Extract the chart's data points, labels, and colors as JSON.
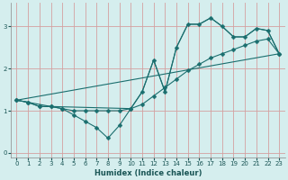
{
  "xlabel": "Humidex (Indice chaleur)",
  "bg_color": "#d5eeee",
  "grid_color": "#d4a0a0",
  "line_color": "#1a6e6e",
  "markersize": 2.5,
  "xlim": [
    -0.5,
    23.5
  ],
  "ylim": [
    -0.1,
    3.55
  ],
  "xticks": [
    0,
    1,
    2,
    3,
    4,
    5,
    6,
    7,
    8,
    9,
    10,
    11,
    12,
    13,
    14,
    15,
    16,
    17,
    18,
    19,
    20,
    21,
    22,
    23
  ],
  "yticks": [
    0,
    1,
    2,
    3
  ],
  "line1_x": [
    0,
    1,
    2,
    3,
    4,
    5,
    6,
    7,
    8,
    9,
    10,
    11,
    12,
    13,
    14,
    15,
    16,
    17,
    18,
    19,
    20,
    21,
    22,
    23
  ],
  "line1_y": [
    1.25,
    1.2,
    1.1,
    1.1,
    1.05,
    0.9,
    0.75,
    0.6,
    0.35,
    0.65,
    1.05,
    1.45,
    2.2,
    1.45,
    2.5,
    3.05,
    3.05,
    3.2,
    3.0,
    2.75,
    2.75,
    2.95,
    2.9,
    2.35
  ],
  "line2_x": [
    0,
    1,
    2,
    3,
    4,
    5,
    6,
    7,
    8,
    9,
    10,
    11,
    12,
    13,
    14,
    15,
    16,
    17,
    18,
    19,
    20,
    21,
    22,
    23
  ],
  "line2_y": [
    1.25,
    1.2,
    1.1,
    1.1,
    1.05,
    1.0,
    1.0,
    1.0,
    1.0,
    1.0,
    1.05,
    1.15,
    1.35,
    1.55,
    1.75,
    1.95,
    2.1,
    2.25,
    2.35,
    2.45,
    2.55,
    2.65,
    2.7,
    2.35
  ],
  "line3_x": [
    0,
    23
  ],
  "line3_y": [
    1.25,
    2.35
  ],
  "line4_x": [
    0,
    3,
    10,
    11,
    12,
    13,
    14,
    15,
    16,
    17,
    18,
    19,
    20,
    21,
    22,
    23
  ],
  "line4_y": [
    1.25,
    1.1,
    1.05,
    1.45,
    2.2,
    1.45,
    2.5,
    3.05,
    3.05,
    3.2,
    3.0,
    2.75,
    2.75,
    2.95,
    2.9,
    2.35
  ]
}
